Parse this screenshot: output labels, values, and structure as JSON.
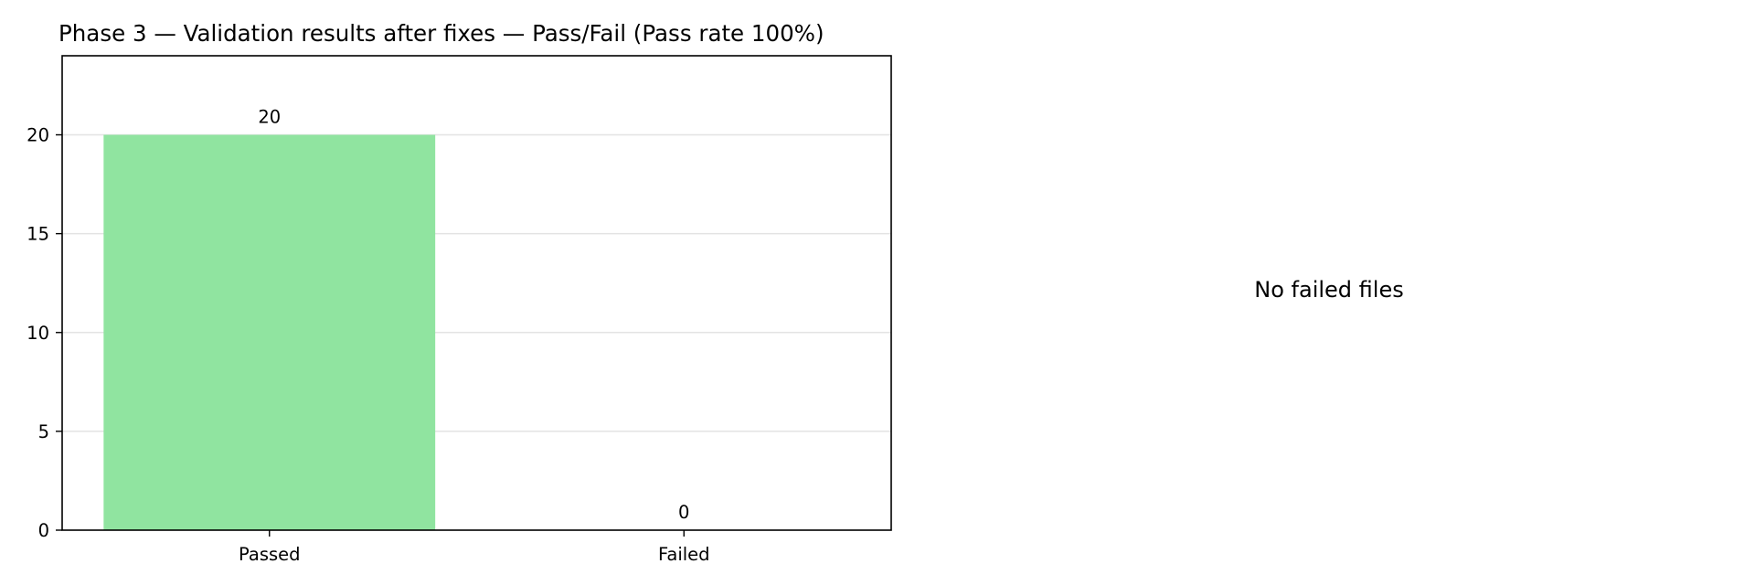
{
  "chart_data": {
    "type": "bar",
    "title": "Phase 3 — Validation results after fixes — Pass/Fail (Pass rate 100%)",
    "xlabel": "",
    "ylabel": "",
    "categories": [
      "Passed",
      "Failed"
    ],
    "values": [
      20,
      0
    ],
    "data_labels": [
      "20",
      "0"
    ],
    "ylim": [
      0,
      24
    ],
    "yticks": [
      0,
      5,
      10,
      15,
      20
    ],
    "grid": "horizontal",
    "legend": "none",
    "bar_color": "#90e4a0"
  },
  "side_panel": {
    "message": "No failed files"
  }
}
